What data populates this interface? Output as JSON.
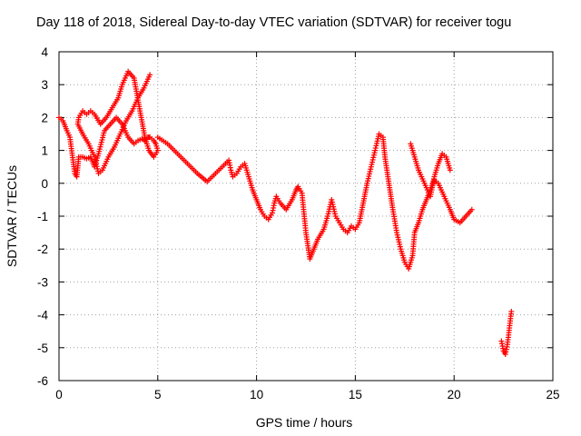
{
  "chart_data": {
    "type": "scatter",
    "title": "Day 118 of 2018, Sidereal Day-to-day VTEC variation (SDTVAR) for receiver togu",
    "xlabel": "GPS time / hours",
    "ylabel": "SDTVAR / TECUs",
    "xlim": [
      0,
      25
    ],
    "ylim": [
      -6,
      4
    ],
    "x_ticks": [
      0,
      5,
      10,
      15,
      20,
      25
    ],
    "y_ticks": [
      4,
      3,
      2,
      1,
      0,
      -1,
      -2,
      -3,
      -4,
      -5,
      -6
    ],
    "grid": true,
    "marker": "+",
    "color": "#ff0000",
    "series": [
      {
        "name": "SDTVAR",
        "x": [
          0.0,
          0.2,
          0.4,
          0.55,
          0.8,
          0.9,
          1.0,
          1.2,
          1.4,
          1.6,
          1.8,
          2.0,
          2.3,
          2.6,
          2.9,
          3.2,
          3.5,
          3.8,
          4.0,
          4.2,
          4.35,
          4.5,
          4.6,
          4.8,
          4.9,
          5.0,
          4.8,
          4.55,
          4.35,
          4.1,
          3.8,
          3.5,
          3.2,
          3.0,
          2.7,
          2.4,
          2.1,
          1.8,
          1.6,
          1.4,
          1.2,
          1.0,
          0.95,
          1.2,
          1.5,
          1.8,
          2.0,
          2.2,
          2.5,
          2.8,
          3.1,
          3.4,
          3.7,
          4.0,
          4.3,
          4.6,
          5.0,
          5.5,
          6.0,
          6.5,
          7.0,
          7.5,
          8.6,
          8.7,
          8.8,
          9.0,
          9.2,
          9.4,
          9.6,
          9.8,
          10.0,
          10.2,
          10.4,
          10.6,
          10.8,
          10.9,
          11.0,
          11.2,
          11.5,
          11.8,
          12.0,
          12.1,
          12.3,
          12.5,
          12.7,
          12.9,
          13.1,
          13.4,
          13.6,
          13.8,
          14.0,
          14.2,
          14.4,
          14.6,
          14.8,
          15.0,
          15.2,
          15.4,
          15.6,
          15.8,
          16.0,
          16.2,
          16.4,
          16.5,
          16.7,
          16.9,
          17.1,
          17.3,
          17.5,
          17.7,
          17.9,
          18.0,
          18.2,
          18.4,
          18.6,
          18.8,
          19.0,
          19.2,
          19.5,
          19.8,
          20.0,
          20.3,
          20.6,
          20.9,
          17.8,
          18.0,
          18.2,
          18.5,
          18.8,
          19.0,
          19.2,
          19.4,
          19.6,
          19.8,
          22.4,
          22.5,
          22.6,
          22.7,
          22.8,
          22.9
        ],
        "y": [
          2.0,
          1.9,
          1.6,
          1.4,
          0.3,
          0.2,
          0.8,
          0.8,
          0.75,
          0.8,
          0.5,
          0.9,
          1.6,
          1.8,
          2.0,
          1.8,
          1.4,
          1.2,
          1.3,
          1.35,
          1.3,
          1.4,
          1.4,
          1.3,
          1.2,
          1.0,
          0.8,
          1.0,
          1.4,
          2.2,
          3.2,
          3.4,
          3.0,
          2.6,
          2.3,
          2.0,
          1.8,
          2.1,
          2.2,
          2.1,
          2.2,
          2.0,
          1.8,
          1.5,
          1.2,
          0.8,
          0.3,
          0.4,
          0.8,
          1.1,
          1.5,
          1.9,
          2.2,
          2.6,
          2.9,
          3.3,
          1.4,
          1.2,
          0.9,
          0.6,
          0.3,
          0.05,
          0.7,
          0.4,
          0.2,
          0.3,
          0.5,
          0.6,
          0.2,
          -0.2,
          -0.5,
          -0.8,
          -1.0,
          -1.1,
          -0.9,
          -0.6,
          -0.4,
          -0.6,
          -0.8,
          -0.5,
          -0.2,
          -0.1,
          -0.3,
          -1.5,
          -2.3,
          -2.0,
          -1.7,
          -1.4,
          -1.0,
          -0.5,
          -1.0,
          -1.2,
          -1.4,
          -1.5,
          -1.3,
          -1.4,
          -1.2,
          -0.6,
          0.0,
          0.5,
          1.0,
          1.5,
          1.4,
          0.8,
          0.0,
          -0.8,
          -1.5,
          -2.0,
          -2.4,
          -2.6,
          -2.2,
          -1.5,
          -1.2,
          -0.8,
          -0.5,
          -0.2,
          0.1,
          0.0,
          -0.4,
          -0.8,
          -1.1,
          -1.2,
          -1.0,
          -0.8,
          1.2,
          0.8,
          0.4,
          0.0,
          -0.4,
          0.2,
          0.6,
          0.9,
          0.8,
          0.4,
          -4.8,
          -5.1,
          -5.2,
          -4.9,
          -4.4,
          -3.9
        ]
      }
    ]
  }
}
